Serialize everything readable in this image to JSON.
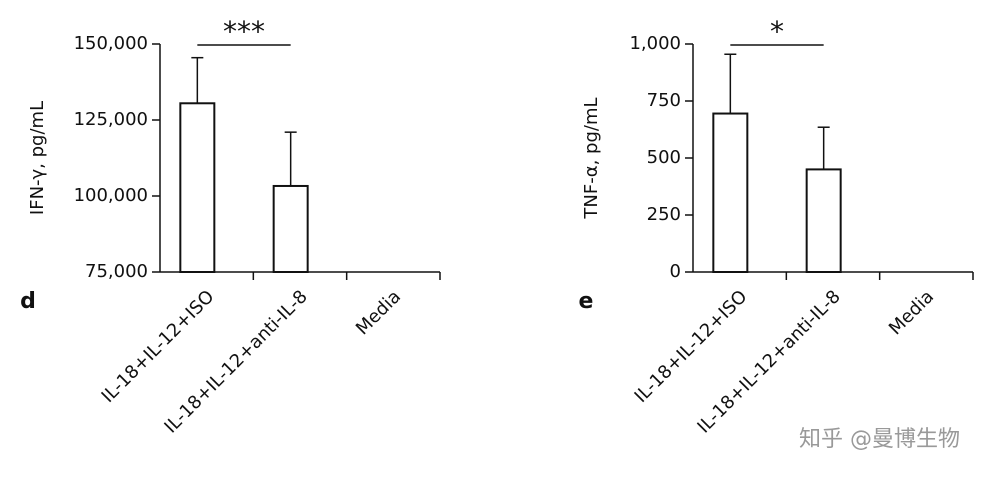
{
  "chart_data": [
    {
      "type": "bar",
      "panel_label": "d",
      "ylabel": "IFN-γ, pg/mL",
      "categories": [
        "IL-18+IL-12+ISO",
        "IL-18+IL-12+anti-IL-8",
        "Media"
      ],
      "values": [
        130500,
        103300,
        null
      ],
      "errors": [
        15000,
        17700,
        null
      ],
      "ylim": [
        75000,
        150000
      ],
      "yticks": [
        {
          "value": 75000,
          "label": "75,000"
        },
        {
          "value": 100000,
          "label": "100,000"
        },
        {
          "value": 125000,
          "label": "125,000"
        },
        {
          "value": 150000,
          "label": "150,000"
        }
      ],
      "annotation": "***",
      "color": "#ffffff"
    },
    {
      "type": "bar",
      "panel_label": "e",
      "ylabel": "TNF-α, pg/mL",
      "categories": [
        "IL-18+IL-12+ISO",
        "IL-18+IL-12+anti-IL-8",
        "Media"
      ],
      "values": [
        695,
        450,
        null
      ],
      "errors": [
        260,
        185,
        null
      ],
      "ylim": [
        0,
        1000
      ],
      "yticks": [
        0,
        250,
        500,
        750,
        {
          "value": 1000,
          "label": "1,000"
        }
      ],
      "annotation": "*",
      "color": "#ffffff"
    }
  ],
  "watermark": "知乎 @曼博生物"
}
